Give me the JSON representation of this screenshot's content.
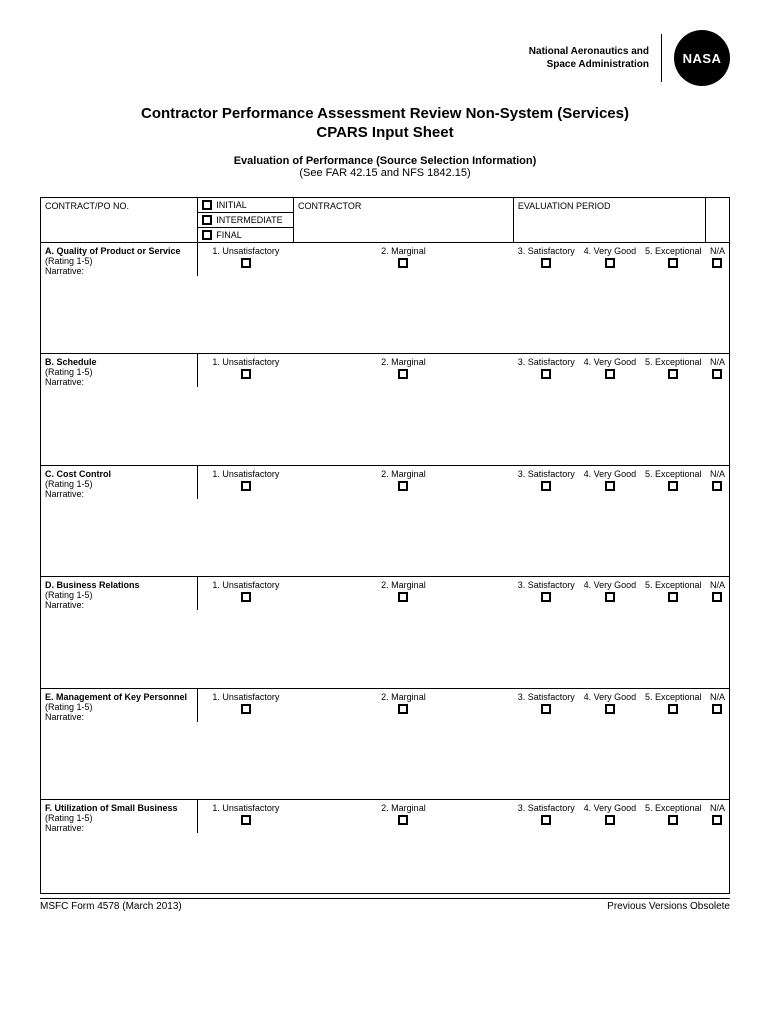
{
  "header": {
    "org_line1": "National Aeronautics and",
    "org_line2": "Space Administration",
    "logo_text": "NASA"
  },
  "title": {
    "line1": "Contractor Performance Assessment Review Non-System (Services)",
    "line2": "CPARS Input Sheet",
    "eval_heading": "Evaluation of Performance (Source Selection Information)",
    "eval_ref": "(See FAR 42.15 and NFS 1842.15)"
  },
  "top": {
    "contract_label": "CONTRACT/PO NO.",
    "status": [
      "INITIAL",
      "INTERMEDIATE",
      "FINAL"
    ],
    "contractor_label": "CONTRACTOR",
    "period_label": "EVALUATION PERIOD"
  },
  "ratings": [
    "1. Unsatisfactory",
    "2. Marginal",
    "3. Satisfactory",
    "4. Very Good",
    "5. Exceptional",
    "N/A"
  ],
  "rating_meta": "(Rating 1-5)",
  "narrative_label": "Narrative:",
  "sections": [
    "A. Quality of Product or Service",
    "B. Schedule",
    "C. Cost Control",
    "D. Business Relations",
    "E. Management of Key Personnel",
    "F. Utilization of Small Business"
  ],
  "footer": {
    "left": "MSFC Form 4578 (March 2013)",
    "right": "Previous Versions Obsolete"
  }
}
